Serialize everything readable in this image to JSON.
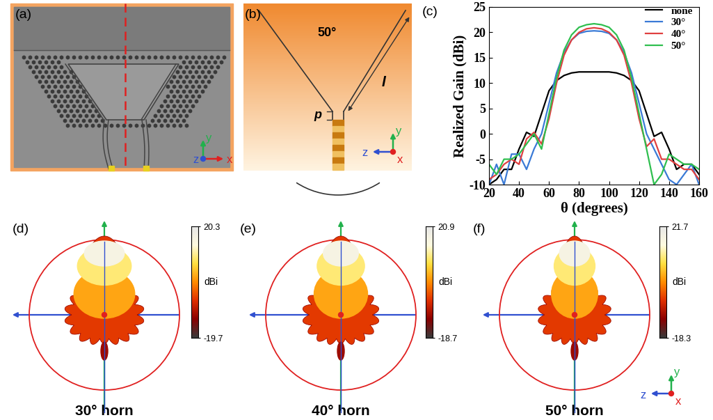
{
  "panel_labels": [
    "(a)",
    "(b)",
    "(c)",
    "(d)",
    "(e)",
    "(f)"
  ],
  "schematic_a": {
    "axes_labels": [
      "y",
      "z",
      "x"
    ]
  },
  "schematic_b": {
    "angle_label": "50°",
    "length_label": "l",
    "offset_label": "p",
    "axes_labels": [
      "y",
      "z",
      "x"
    ]
  },
  "chart_data": {
    "type": "line",
    "xlabel": "θ (degrees)",
    "ylabel": "Realized Gain (dBi)",
    "x": [
      20,
      25,
      30,
      35,
      40,
      45,
      50,
      55,
      60,
      65,
      70,
      75,
      80,
      85,
      90,
      95,
      100,
      105,
      110,
      115,
      120,
      125,
      130,
      135,
      140,
      145,
      150,
      155,
      160
    ],
    "xlim": [
      20,
      160
    ],
    "xticks": [
      20,
      40,
      60,
      80,
      100,
      120,
      140,
      160
    ],
    "ylim": [
      -10,
      25
    ],
    "yticks": [
      -10,
      -5,
      0,
      5,
      10,
      15,
      20,
      25
    ],
    "legend": "upper right",
    "series": [
      {
        "name": "none",
        "color": "#000000",
        "values": [
          -10,
          -9,
          -7,
          -7,
          -3,
          0.3,
          -0.5,
          4,
          8.5,
          10.5,
          11.5,
          12,
          12.2,
          12.2,
          12.2,
          12.2,
          12.2,
          12,
          11.5,
          10.5,
          8.5,
          4,
          -0.5,
          0.3,
          -3,
          -7,
          -6,
          -6,
          -8
        ]
      },
      {
        "name": "30°",
        "color": "#3a7ad6",
        "values": [
          -10,
          -6,
          -10,
          -4,
          -4,
          -7,
          -3,
          0,
          6,
          12,
          16,
          18.5,
          19.8,
          20.2,
          20.3,
          20.2,
          19.8,
          18.5,
          16,
          12,
          6,
          0,
          -3,
          -6,
          -9,
          -10,
          -8,
          -6,
          -10
        ]
      },
      {
        "name": "40°",
        "color": "#e04040",
        "values": [
          -9,
          -8,
          -6,
          -5,
          -6,
          -1,
          0.3,
          -2,
          3,
          10,
          15.5,
          18.5,
          20,
          20.7,
          20.9,
          20.7,
          20,
          18.5,
          15.5,
          10,
          3,
          -2.5,
          -1,
          -5,
          -5,
          -6,
          -7,
          -7,
          -9
        ]
      },
      {
        "name": "50°",
        "color": "#2fbf4f",
        "values": [
          -6,
          -8,
          -5,
          -5,
          -4,
          -2,
          0,
          -3,
          4,
          11,
          16.5,
          19.5,
          21,
          21.5,
          21.7,
          21.5,
          21,
          19.5,
          16.5,
          11,
          4,
          -3,
          -10,
          -8,
          -4,
          -5,
          -6,
          -6,
          -7
        ]
      }
    ]
  },
  "patterns": [
    {
      "caption": "30° horn",
      "colorbar": {
        "max": 20.3,
        "min": -19.7,
        "unit": "dBi"
      }
    },
    {
      "caption": "40° horn",
      "colorbar": {
        "max": 20.9,
        "min": -18.7,
        "unit": "dBi"
      }
    },
    {
      "caption": "50° horn",
      "colorbar": {
        "max": 21.7,
        "min": -18.3,
        "unit": "dBi"
      }
    }
  ],
  "axes_triad": [
    "y",
    "z",
    "x"
  ]
}
